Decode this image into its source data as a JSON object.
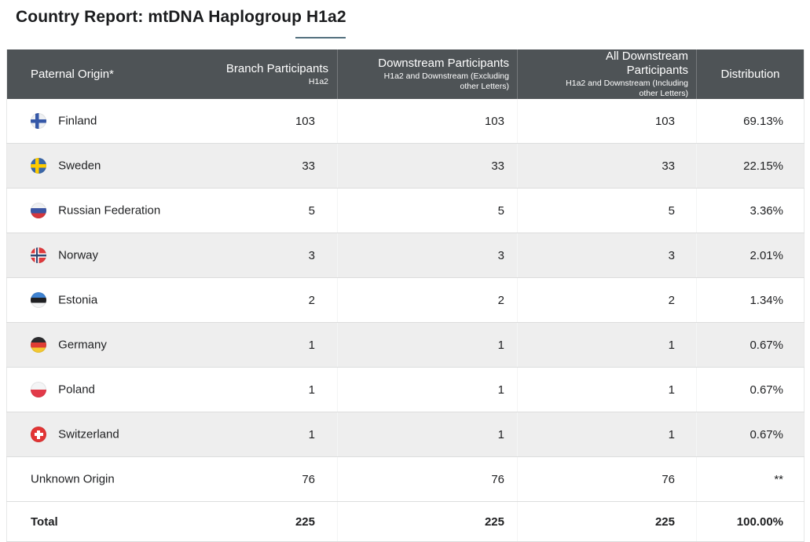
{
  "title": "Country Report: mtDNA Haplogroup H1a2",
  "colors": {
    "header_bg": "#4e5356",
    "header_divider": "#75797c",
    "header_text": "#ffffff",
    "row_alt_bg": "#eeeeee",
    "row_border": "#dcdddd",
    "table_edge": "#e7e8e8",
    "accent_underline": "#53707e",
    "text": "#1e1f21"
  },
  "table": {
    "columns": [
      {
        "label": "Paternal Origin*",
        "sub": ""
      },
      {
        "label": "Branch Participants",
        "sub": "H1a2"
      },
      {
        "label": "Downstream Participants",
        "sub": "H1a2 and Downstream (Excluding other Letters)"
      },
      {
        "label": "All Downstream Participants",
        "sub": "H1a2 and Downstream (Including other Letters)"
      },
      {
        "label": "Distribution",
        "sub": ""
      }
    ],
    "rows": [
      {
        "country": "Finland",
        "flag_icon": "finland-flag-icon",
        "branch": "103",
        "downstream": "103",
        "all_downstream": "103",
        "distribution": "69.13%"
      },
      {
        "country": "Sweden",
        "flag_icon": "sweden-flag-icon",
        "branch": "33",
        "downstream": "33",
        "all_downstream": "33",
        "distribution": "22.15%"
      },
      {
        "country": "Russian Federation",
        "flag_icon": "russia-flag-icon",
        "branch": "5",
        "downstream": "5",
        "all_downstream": "5",
        "distribution": "3.36%"
      },
      {
        "country": "Norway",
        "flag_icon": "norway-flag-icon",
        "branch": "3",
        "downstream": "3",
        "all_downstream": "3",
        "distribution": "2.01%"
      },
      {
        "country": "Estonia",
        "flag_icon": "estonia-flag-icon",
        "branch": "2",
        "downstream": "2",
        "all_downstream": "2",
        "distribution": "1.34%"
      },
      {
        "country": "Germany",
        "flag_icon": "germany-flag-icon",
        "branch": "1",
        "downstream": "1",
        "all_downstream": "1",
        "distribution": "0.67%"
      },
      {
        "country": "Poland",
        "flag_icon": "poland-flag-icon",
        "branch": "1",
        "downstream": "1",
        "all_downstream": "1",
        "distribution": "0.67%"
      },
      {
        "country": "Switzerland",
        "flag_icon": "switzerland-flag-icon",
        "branch": "1",
        "downstream": "1",
        "all_downstream": "1",
        "distribution": "0.67%"
      },
      {
        "country": "Unknown Origin",
        "flag_icon": null,
        "branch": "76",
        "downstream": "76",
        "all_downstream": "76",
        "distribution": "**"
      },
      {
        "country": "Total",
        "flag_icon": null,
        "branch": "225",
        "downstream": "225",
        "all_downstream": "225",
        "distribution": "100.00%"
      }
    ]
  }
}
